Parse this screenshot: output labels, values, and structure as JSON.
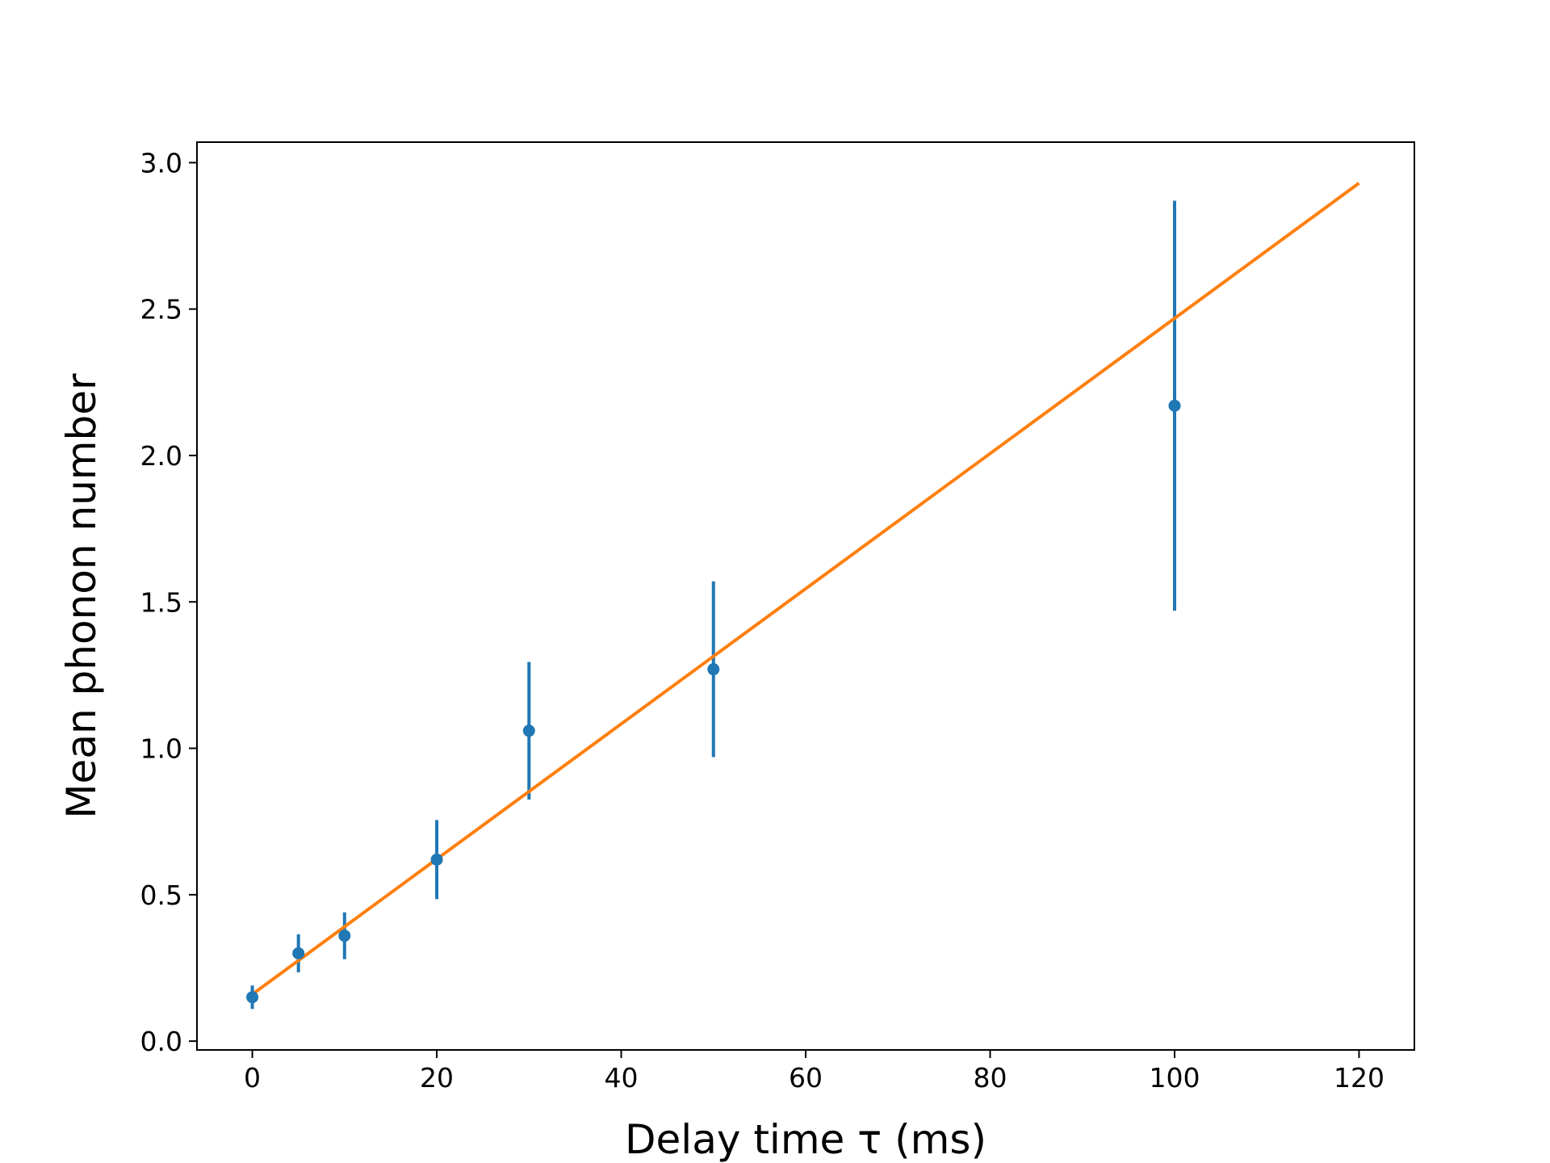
{
  "chart_data": {
    "type": "scatter",
    "title": "",
    "xlabel": "Delay time τ (ms)",
    "ylabel": "Mean phonon number",
    "xlim": [
      -6,
      126
    ],
    "ylim": [
      -0.03,
      3.07
    ],
    "xticks": [
      0,
      20,
      40,
      60,
      80,
      100,
      120
    ],
    "xtick_labels": [
      "0",
      "20",
      "40",
      "60",
      "80",
      "100",
      "120"
    ],
    "yticks": [
      0.0,
      0.5,
      1.0,
      1.5,
      2.0,
      2.5,
      3.0
    ],
    "ytick_labels": [
      "0.0",
      "0.5",
      "1.0",
      "1.5",
      "2.0",
      "2.5",
      "3.0"
    ],
    "grid": false,
    "series": [
      {
        "kind": "errorbar",
        "color": "#1f77b4",
        "x": [
          0,
          5,
          10,
          20,
          30,
          50,
          100
        ],
        "y": [
          0.15,
          0.3,
          0.36,
          0.62,
          1.06,
          1.27,
          2.17
        ],
        "yerr": [
          0.04,
          0.065,
          0.08,
          0.135,
          0.235,
          0.3,
          0.7
        ]
      },
      {
        "kind": "line",
        "color": "#ff7f0e",
        "x": [
          0,
          120
        ],
        "y": [
          0.16,
          2.93
        ]
      }
    ]
  }
}
